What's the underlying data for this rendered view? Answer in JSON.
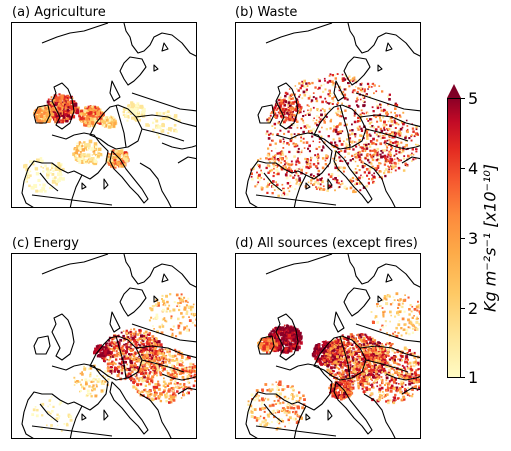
{
  "panels": [
    {
      "id": "agriculture",
      "title": "(a) Agriculture"
    },
    {
      "id": "waste",
      "title": "(b) Waste"
    },
    {
      "id": "energy",
      "title": "(c) Energy"
    },
    {
      "id": "all",
      "title": "(d) All sources (except fires)"
    }
  ],
  "colorbar": {
    "ticks": [
      "1",
      "2",
      "3",
      "4",
      "5"
    ],
    "label": "Kg m⁻²s⁻¹ [x10⁻¹⁰]",
    "extend": "max",
    "colors": [
      "#fffbc4",
      "#fee597",
      "#fec965",
      "#fdaa48",
      "#fd8a3c",
      "#f65b30",
      "#e32a21",
      "#c10a26",
      "#8d0026",
      "#800026"
    ]
  }
}
